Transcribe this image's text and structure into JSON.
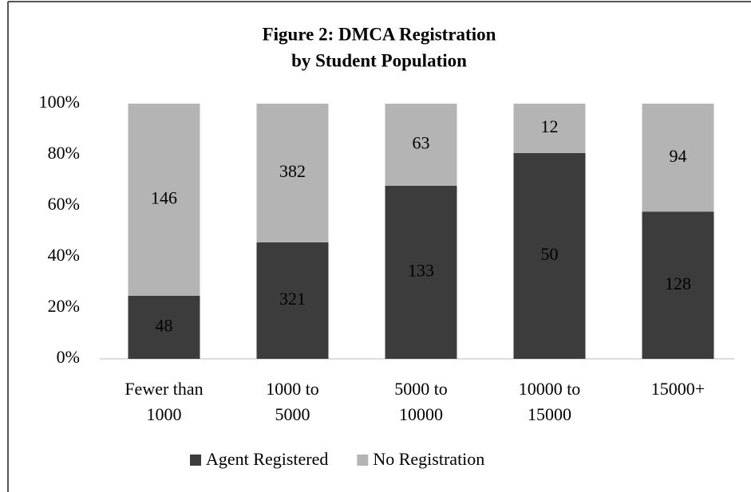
{
  "chart_data": {
    "type": "bar",
    "stacked": true,
    "normalize": true,
    "title": [
      "Figure 2: DMCA Registration",
      "by Student Population"
    ],
    "categories": [
      [
        "Fewer than",
        "1000"
      ],
      [
        "1000 to",
        "5000"
      ],
      [
        "5000 to",
        "10000"
      ],
      [
        "10000 to",
        "15000"
      ],
      [
        "15000+"
      ]
    ],
    "series": [
      {
        "name": "Agent Registered",
        "color": "#3c3c3c",
        "values": [
          48,
          321,
          133,
          50,
          128
        ]
      },
      {
        "name": "No Registration",
        "color": "#b4b4b4",
        "values": [
          146,
          382,
          63,
          12,
          94
        ]
      }
    ],
    "ylim": [
      0,
      100
    ],
    "yticks": [
      {
        "value": 0,
        "label": "0%"
      },
      {
        "value": 20,
        "label": "20%"
      },
      {
        "value": 40,
        "label": "40%"
      },
      {
        "value": 60,
        "label": "60%"
      },
      {
        "value": 80,
        "label": "80%"
      },
      {
        "value": 100,
        "label": "100%"
      }
    ],
    "legend": "bottom"
  }
}
